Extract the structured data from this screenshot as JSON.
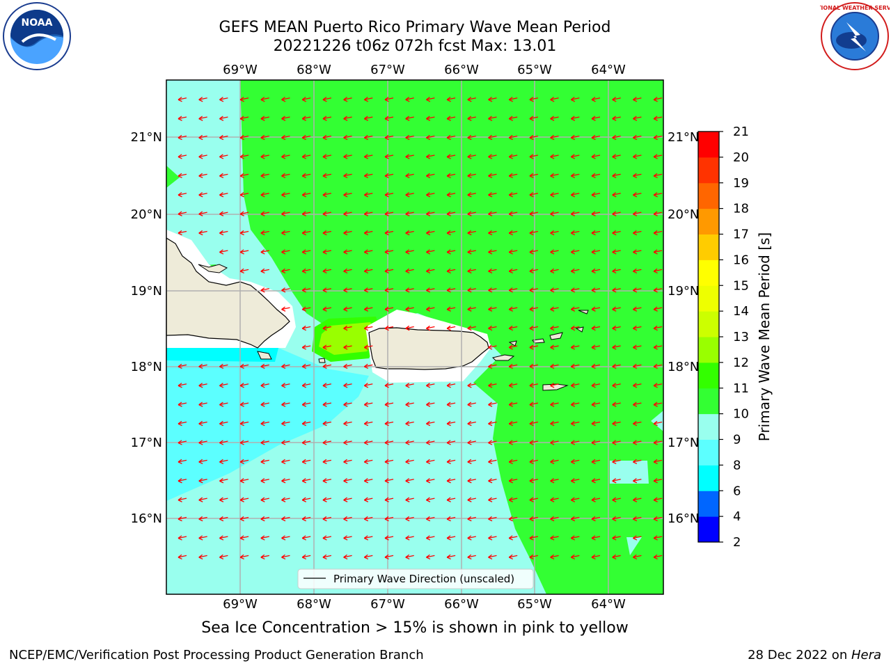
{
  "title_line1": "GEFS MEAN Puerto Rico Primary Wave Mean Period",
  "title_line2": "20221226 t06z 072h fcst   Max: 13.01",
  "logos": {
    "left": "NOAA",
    "right": "NATIONAL WEATHER SERVICE"
  },
  "lon_labels": [
    "69°W",
    "68°W",
    "67°W",
    "66°W",
    "65°W",
    "64°W"
  ],
  "lat_labels": [
    "21°N",
    "20°N",
    "19°N",
    "18°N",
    "17°N",
    "16°N"
  ],
  "legend_label": "Primary Wave Direction (unscaled)",
  "colorbar": {
    "label": "Primary Wave Mean Period [s]",
    "ticks": [
      "2",
      "4",
      "6",
      "8",
      "9",
      "10",
      "11",
      "12",
      "13",
      "14",
      "15",
      "16",
      "17",
      "18",
      "19",
      "20",
      "21"
    ],
    "colors": [
      "#0000ff",
      "#0066ff",
      "#00ffff",
      "#5cffff",
      "#99ffee",
      "#33ff33",
      "#33ff00",
      "#99ff00",
      "#ccff00",
      "#eeff00",
      "#ffff00",
      "#ffcc00",
      "#ff9900",
      "#ff6600",
      "#ff3300",
      "#ff0000"
    ]
  },
  "colors": {
    "land": "#eeebd9",
    "mask": "#ffffff",
    "arrow": "#ff0000",
    "grid": "#b0b0b0"
  },
  "ice_note": "Sea Ice Concentration > 15% is shown in pink to yellow",
  "footer_left": "NCEP/EMC/Verification Post Processing Product Generation Branch",
  "footer_right_date": "28 Dec 2022 on ",
  "footer_right_machine": "Hera"
}
